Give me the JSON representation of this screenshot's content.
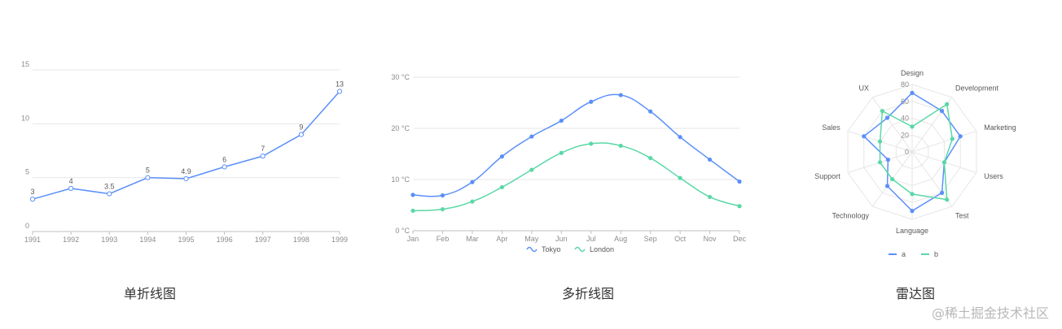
{
  "captions": {
    "single": "单折线图",
    "multi": "多折线图",
    "radar": "雷达图"
  },
  "watermark": "@稀土掘金技术社区",
  "colors": {
    "blue": "#5B8FF9",
    "green": "#5AD8A6",
    "grid": "#e6e6e6",
    "axisText": "#8c8c8c",
    "labelText": "#595959"
  },
  "chart_data": [
    {
      "type": "line",
      "title": "",
      "x": [
        "1991",
        "1992",
        "1993",
        "1994",
        "1995",
        "1996",
        "1997",
        "1998",
        "1999"
      ],
      "values": [
        3,
        4,
        3.5,
        5,
        4.9,
        6,
        7,
        9,
        13
      ],
      "data_labels": [
        "3",
        "4",
        "3.5",
        "5",
        "4.9",
        "6",
        "7",
        "9",
        "13"
      ],
      "yticks": [
        "0",
        "5",
        "10",
        "15"
      ],
      "ylim": [
        0,
        15
      ],
      "grid": true
    },
    {
      "type": "line",
      "title": "",
      "x": [
        "Jan",
        "Feb",
        "Mar",
        "Apr",
        "May",
        "Jun",
        "Jul",
        "Aug",
        "Sep",
        "Oct",
        "Nov",
        "Dec"
      ],
      "series": [
        {
          "name": "Tokyo",
          "color": "#5B8FF9",
          "values": [
            7.0,
            6.9,
            9.5,
            14.5,
            18.4,
            21.5,
            25.2,
            26.5,
            23.3,
            18.3,
            13.9,
            9.6
          ]
        },
        {
          "name": "London",
          "color": "#5AD8A6",
          "values": [
            3.9,
            4.2,
            5.7,
            8.5,
            11.9,
            15.2,
            17.0,
            16.6,
            14.2,
            10.3,
            6.6,
            4.8
          ]
        }
      ],
      "yticks": [
        "0 °C",
        "10 °C",
        "20 °C",
        "30 °C"
      ],
      "ylim": [
        0,
        30
      ],
      "grid": true,
      "smooth": true,
      "legend": "bottom"
    },
    {
      "type": "radar",
      "title": "",
      "axes": [
        "Design",
        "Development",
        "Marketing",
        "Users",
        "Test",
        "Language",
        "Technology",
        "Support",
        "Sales",
        "UX"
      ],
      "series": [
        {
          "name": "a",
          "color": "#5B8FF9",
          "values": [
            70,
            60,
            60,
            40,
            60,
            70,
            50,
            30,
            60,
            50
          ]
        },
        {
          "name": "b",
          "color": "#5AD8A6",
          "values": [
            30,
            70,
            50,
            40,
            70,
            50,
            40,
            40,
            40,
            60
          ]
        }
      ],
      "rticks": [
        "0",
        "20",
        "40",
        "60",
        "80"
      ],
      "rlim": [
        0,
        80
      ],
      "grid": true,
      "legend": "bottom"
    }
  ]
}
